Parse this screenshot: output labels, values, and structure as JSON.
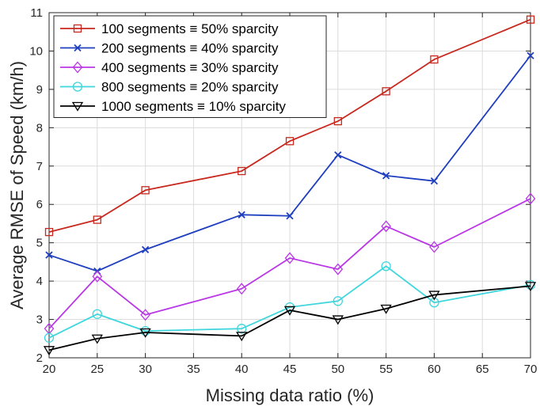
{
  "chart_data": {
    "type": "line",
    "title": "",
    "xlabel": "Missing data ratio (%)",
    "ylabel": "Average RMSE of Speed (km/h)",
    "xlim": [
      20,
      70
    ],
    "ylim": [
      2,
      11
    ],
    "xticks": [
      20,
      25,
      30,
      35,
      40,
      45,
      50,
      55,
      60,
      65,
      70
    ],
    "yticks": [
      2,
      3,
      4,
      5,
      6,
      7,
      8,
      9,
      10,
      11
    ],
    "grid": true,
    "legend_position": "top-left",
    "x": [
      20,
      25,
      30,
      40,
      45,
      50,
      55,
      60,
      70
    ],
    "series": [
      {
        "name": "100 segments ≡ 50% sparcity",
        "color": "#c8281e",
        "marker": "square",
        "values": [
          5.28,
          5.6,
          6.37,
          6.87,
          7.65,
          8.17,
          8.95,
          9.78,
          10.82
        ]
      },
      {
        "name": "200 segments ≡ 40% sparcity",
        "color": "#1f3fbf",
        "marker": "x",
        "values": [
          4.68,
          4.26,
          4.82,
          5.73,
          5.7,
          7.29,
          6.75,
          6.61,
          9.88
        ]
      },
      {
        "name": "400 segments ≡ 30% sparcity",
        "color": "#b937e6",
        "marker": "diamond",
        "values": [
          2.76,
          4.12,
          3.12,
          3.8,
          4.6,
          4.31,
          5.43,
          4.89,
          6.15
        ]
      },
      {
        "name": "800 segments ≡ 20% sparcity",
        "color": "#3fd6dc",
        "marker": "circle",
        "values": [
          2.52,
          3.14,
          2.7,
          2.76,
          3.32,
          3.48,
          4.39,
          3.44,
          3.9
        ]
      },
      {
        "name": "1000 segments ≡ 10% sparcity",
        "color": "#000000",
        "marker": "triangle-down",
        "values": [
          2.2,
          2.5,
          2.66,
          2.57,
          3.24,
          3.0,
          3.28,
          3.64,
          3.87
        ]
      }
    ]
  }
}
